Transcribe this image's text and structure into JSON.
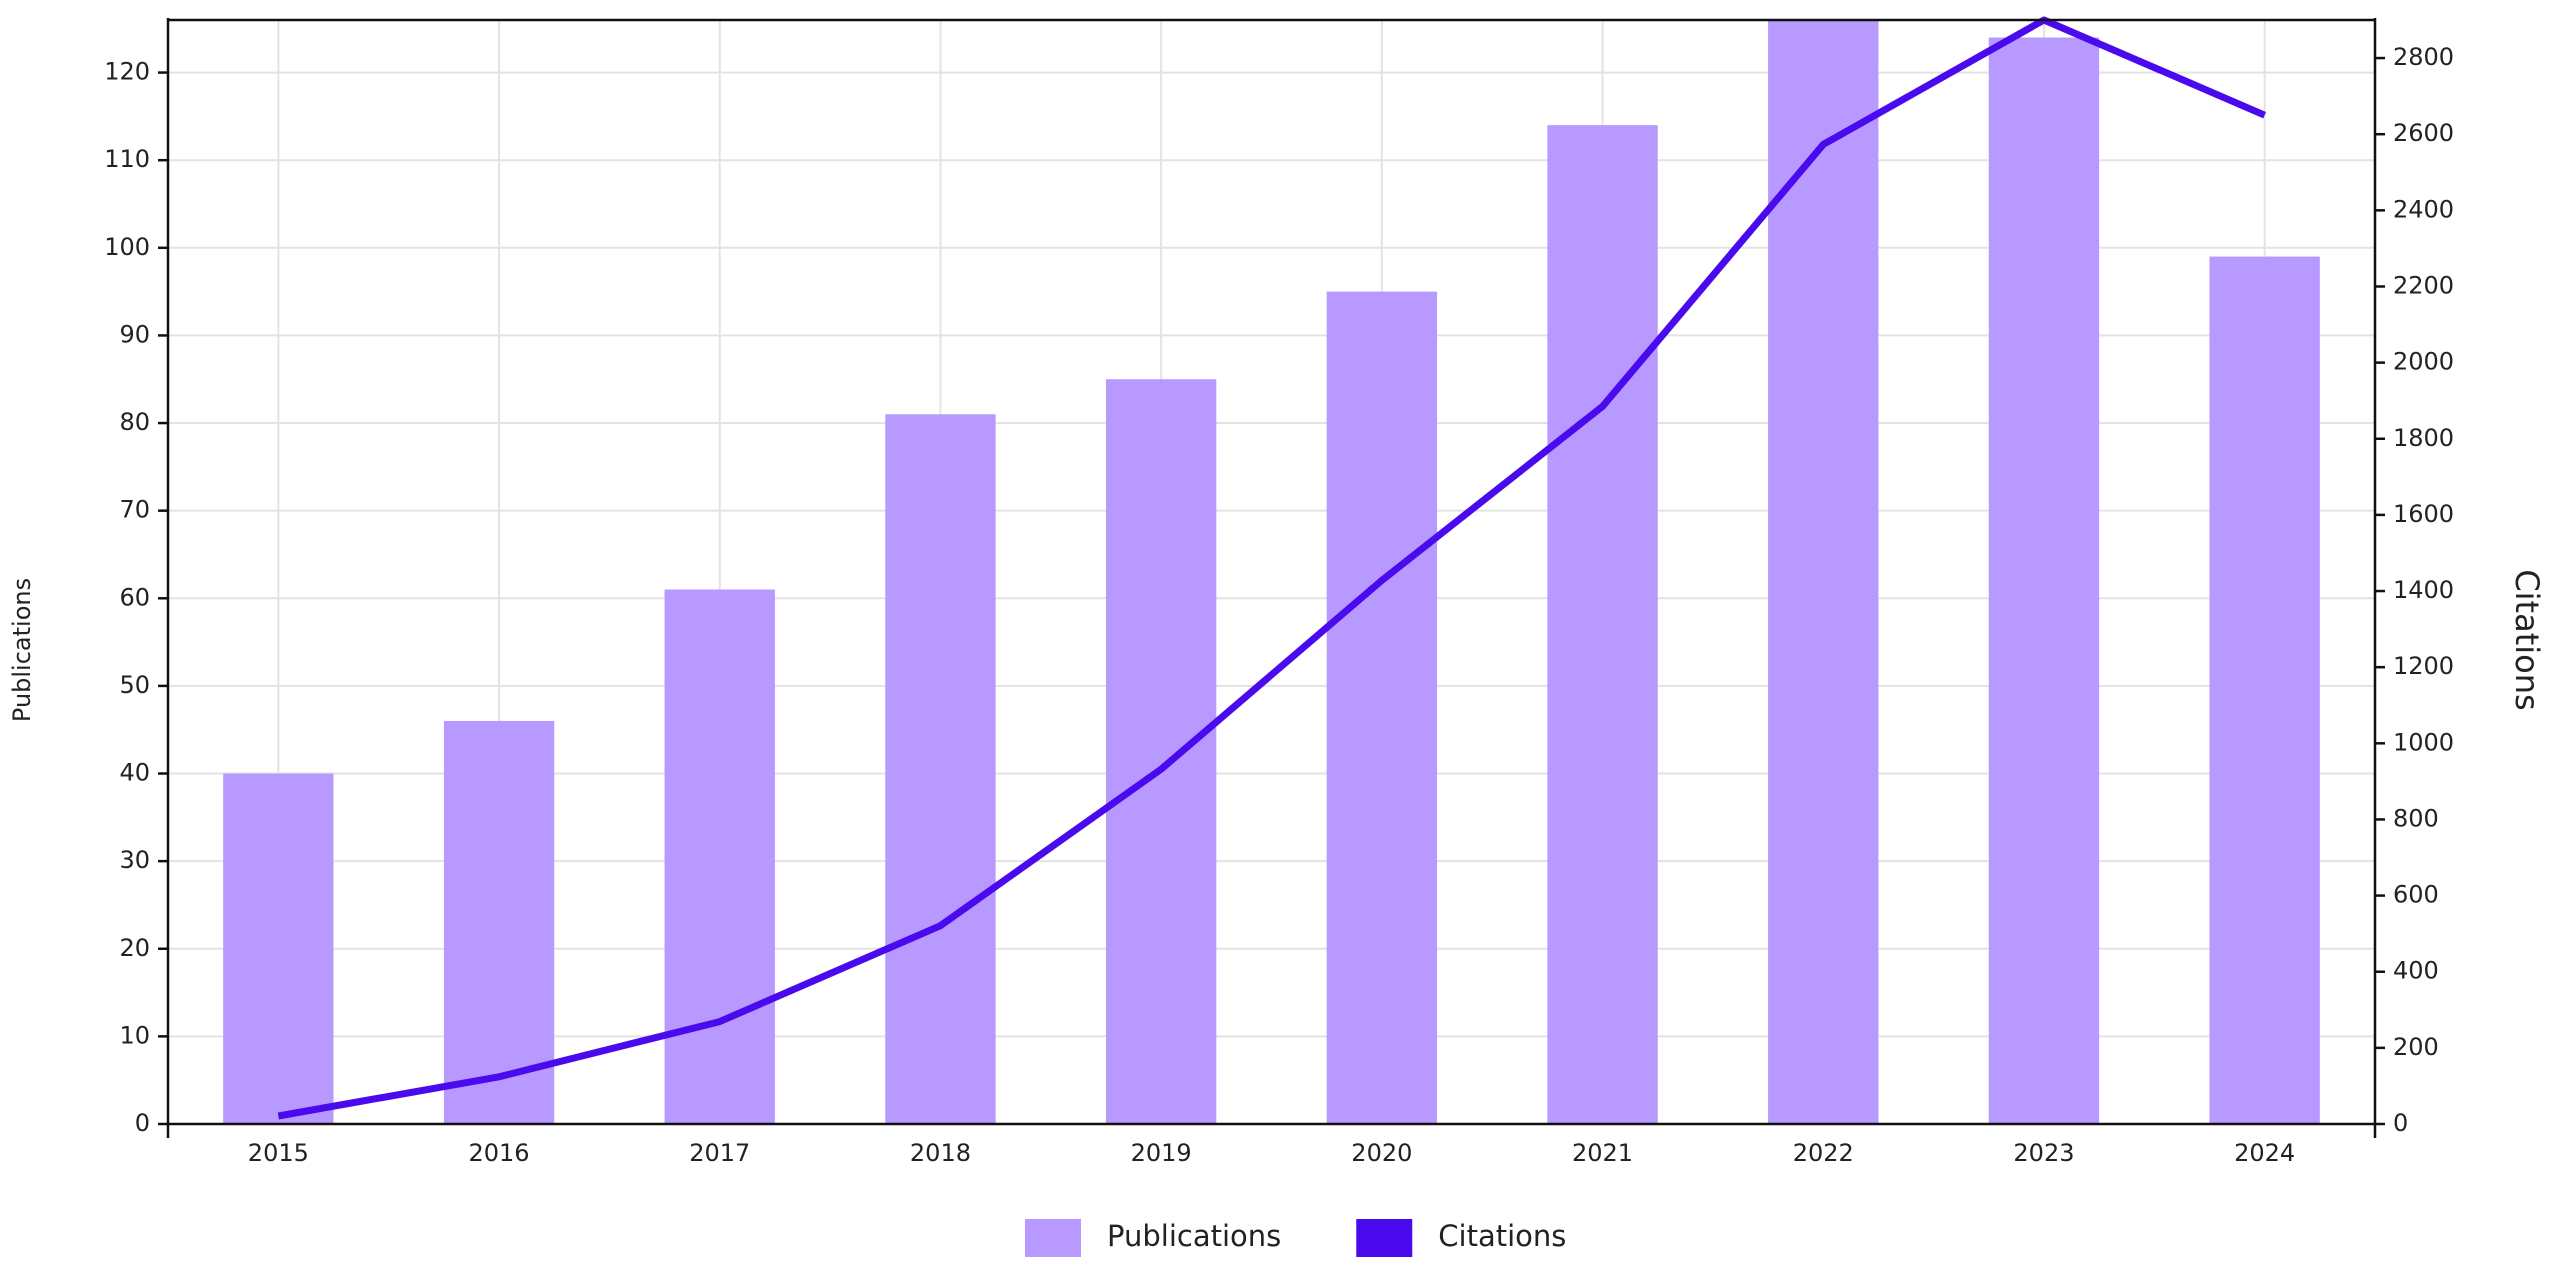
{
  "chart_data": {
    "type": "bar",
    "categories": [
      "2015",
      "2016",
      "2017",
      "2018",
      "2019",
      "2020",
      "2021",
      "2022",
      "2023",
      "2024"
    ],
    "series": [
      {
        "name": "Publications",
        "color": "#b899ff",
        "type": "bar",
        "values": [
          40,
          46,
          61,
          81,
          85,
          95,
          114,
          126,
          124,
          99
        ]
      },
      {
        "name": "Citations",
        "color": "#4a0aee",
        "type": "line",
        "axis": "y2",
        "values": [
          21,
          124,
          269,
          521,
          932,
          1428,
          1885,
          2573,
          2900,
          2650
        ]
      }
    ],
    "y_label": "Publications",
    "y2_label": "Citations",
    "ylim": [
      0,
      126
    ],
    "yticks": [
      0,
      10,
      20,
      30,
      40,
      50,
      60,
      70,
      80,
      90,
      100,
      110,
      120
    ],
    "y2lim": [
      0,
      2900
    ],
    "y2ticks": [
      0,
      200,
      400,
      600,
      800,
      1000,
      1200,
      1400,
      1600,
      1800,
      2000,
      2200,
      2400,
      2600,
      2800
    ],
    "grid": true,
    "legend": "bottom"
  }
}
